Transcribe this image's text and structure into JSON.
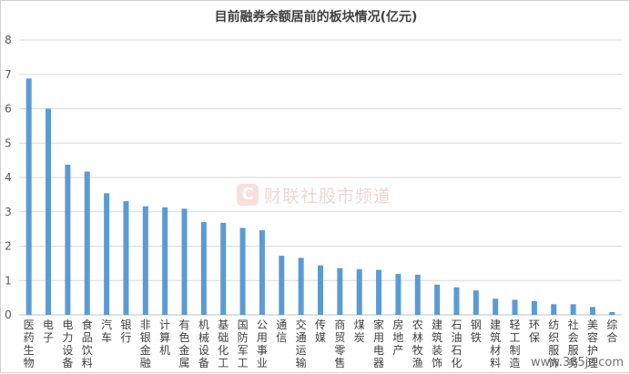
{
  "chart_data": {
    "type": "bar",
    "title": "目前融券余额居前的板块情况(亿元)",
    "xlabel": "",
    "ylabel": "",
    "ylim": [
      0,
      8
    ],
    "yticks": [
      0,
      1,
      2,
      3,
      4,
      5,
      6,
      7,
      8
    ],
    "grid": true,
    "bar_color": "#5b9bd5",
    "categories": [
      "医药生物",
      "电子",
      "电力设备",
      "食品饮料",
      "汽车",
      "银行",
      "非银金融",
      "计算机",
      "有色金属",
      "机械设备",
      "基础化工",
      "国防军工",
      "公用事业",
      "通信",
      "交通运输",
      "传媒",
      "商贸零售",
      "煤炭",
      "家用电器",
      "房地产",
      "农林牧渔",
      "建筑装饰",
      "石油石化",
      "钢铁",
      "建筑材料",
      "轻工制造",
      "环保",
      "纺织服饰",
      "社会服务",
      "美容护理",
      "综合"
    ],
    "values": [
      6.88,
      6.0,
      4.37,
      4.17,
      3.54,
      3.31,
      3.16,
      3.13,
      3.09,
      2.7,
      2.68,
      2.53,
      2.46,
      1.72,
      1.66,
      1.44,
      1.36,
      1.33,
      1.31,
      1.19,
      1.17,
      0.88,
      0.8,
      0.71,
      0.47,
      0.44,
      0.4,
      0.31,
      0.31,
      0.23,
      0.08
    ]
  },
  "watermark": {
    "icon_letter": "C",
    "text": "财联社股市频道"
  },
  "site_mark": "www.365jz.com",
  "colors": {
    "grid": "#d9d9d9",
    "axis": "#bfbfbf",
    "watermark": "#d9534f"
  }
}
